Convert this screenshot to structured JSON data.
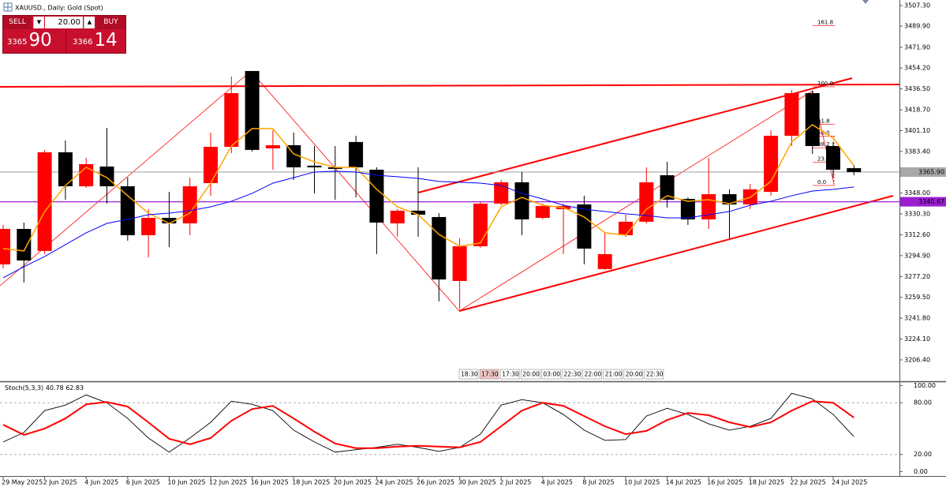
{
  "trade_panel": {
    "sell": "SELL",
    "buy": "BUY",
    "volume": "20.00",
    "bid_big": "3365",
    "bid_small": "90",
    "ask_big": "3366",
    "ask_small": "14"
  },
  "time_scale": [
    "18:30",
    "17:30",
    "17:30",
    "20:00",
    "03:00",
    "22:30",
    "22:00",
    "21:00",
    "20:00",
    "22:30"
  ],
  "chart_data": [
    {
      "type": "candlestick",
      "title": "XAUUSD., Daily: Gold (Spot)",
      "categories": [
        "29 May 2025",
        null,
        "2 Jun 2025",
        null,
        "4 Jun 2025",
        null,
        "6 Jun 2025",
        null,
        "10 Jun 2025",
        null,
        "12 Jun 2025",
        null,
        "16 Jun 2025",
        null,
        "18 Jun 2025",
        null,
        "20 Jun 2025",
        null,
        "24 Jun 2025",
        null,
        "26 Jun 2025",
        null,
        "30 Jun 2025",
        null,
        "2 Jul 2025",
        null,
        "4 Jul 2025",
        null,
        "8 Jul 2025",
        null,
        "10 Jul 2025",
        null,
        "14 Jul 2025",
        null,
        "16 Jul 2025",
        null,
        "18 Jul 2025",
        null,
        "22 Jul 2025",
        null,
        "24 Jul 2025",
        null
      ],
      "open": [
        3287.5,
        3317.6,
        3298.9,
        3382.7,
        3353.8,
        3370.6,
        3353.8,
        3312.3,
        3327.0,
        3322.3,
        3356.5,
        3387.3,
        3451.7,
        3386.0,
        3388.7,
        3371.3,
        3369.9,
        3391.4,
        3367.9,
        3322.3,
        3333.1,
        3327.7,
        3273.4,
        3302.9,
        3339.1,
        3357.2,
        3327.0,
        3334.4,
        3338.4,
        3283.5,
        3312.3,
        3323.7,
        3363.2,
        3343.1,
        3325.7,
        3347.1,
        3338.4,
        3349.1,
        3396.7,
        3432.9,
        3388.0,
        3369.2
      ],
      "high": [
        3321.0,
        3323.0,
        3384.7,
        3392.7,
        3378.0,
        3403.4,
        3361.2,
        3334.4,
        3349.1,
        3361.2,
        3399.4,
        3447.0,
        3451.7,
        3401.4,
        3399.4,
        3388.0,
        3388.0,
        3396.7,
        3369.9,
        3334.4,
        3369.9,
        3331.0,
        3309.6,
        3340.4,
        3359.2,
        3365.9,
        3339.1,
        3339.1,
        3345.8,
        3315.0,
        3329.7,
        3369.9,
        3374.6,
        3344.4,
        3378.0,
        3351.2,
        3355.8,
        3401.4,
        3435.6,
        3434.9,
        3391.4,
        3371.3
      ],
      "low": [
        3284.1,
        3272.1,
        3296.2,
        3342.4,
        3352.5,
        3339.1,
        3307.6,
        3293.5,
        3302.2,
        3312.3,
        3345.8,
        3382.0,
        3383.3,
        3367.9,
        3359.2,
        3347.8,
        3342.4,
        3344.4,
        3296.2,
        3310.9,
        3310.9,
        3256.0,
        3249.3,
        3301.6,
        3337.7,
        3312.3,
        3325.7,
        3296.2,
        3287.5,
        3282.8,
        3310.9,
        3322.3,
        3335.7,
        3321.0,
        3317.6,
        3309.6,
        3334.4,
        3345.8,
        3388.0,
        3381.3,
        3361.2,
        3363.2
      ],
      "close": [
        3317.6,
        3290.8,
        3382.7,
        3353.8,
        3372.6,
        3353.8,
        3312.3,
        3327.0,
        3322.3,
        3353.8,
        3387.3,
        3432.9,
        3384.7,
        3388.7,
        3369.9,
        3369.9,
        3368.6,
        3369.9,
        3323.0,
        3333.1,
        3329.7,
        3274.7,
        3302.9,
        3339.1,
        3357.2,
        3325.7,
        3337.1,
        3337.1,
        3300.9,
        3296.2,
        3323.7,
        3357.2,
        3342.4,
        3325.7,
        3347.1,
        3338.4,
        3351.2,
        3396.7,
        3432.9,
        3388.0,
        3367.9,
        3365.9
      ],
      "up_color": "#ff0000",
      "down_color": "#000000",
      "overlays": [
        {
          "color": "#ffa500",
          "values": [
            3300.9,
            3298.9,
            3332.4,
            3354.5,
            3369.9,
            3361.2,
            3345.8,
            3331.0,
            3322.3,
            3331.0,
            3356.5,
            3388.0,
            3402.8,
            3402.8,
            3381.3,
            3374.6,
            3369.9,
            3369.9,
            3351.2,
            3336.4,
            3329.7,
            3313.0,
            3302.9,
            3305.6,
            3336.4,
            3344.4,
            3337.7,
            3335.7,
            3327.7,
            3314.3,
            3312.3,
            3334.4,
            3345.8,
            3341.1,
            3342.4,
            3339.1,
            3344.4,
            3357.9,
            3391.4,
            3406.1,
            3394.7,
            3371.3
          ]
        },
        {
          "color": "#0000ff",
          "values": [
            3276.1,
            3285.5,
            3294.2,
            3304.2,
            3314.3,
            3322.3,
            3325.7,
            3329.7,
            3331.0,
            3333.1,
            3336.4,
            3341.1,
            3347.8,
            3356.5,
            3361.2,
            3365.9,
            3366.6,
            3365.9,
            3363.2,
            3361.9,
            3360.5,
            3357.9,
            3357.2,
            3356.5,
            3354.5,
            3347.8,
            3343.1,
            3337.7,
            3334.4,
            3332.4,
            3330.4,
            3329.0,
            3327.0,
            3327.0,
            3329.7,
            3332.4,
            3337.7,
            3341.1,
            3345.8,
            3349.8,
            3351.2,
            3353.2
          ]
        }
      ],
      "ylim": [
        3188.9,
        3512.0
      ],
      "yticks": [
        {
          "value": 3507.3,
          "label": "3507.30"
        },
        {
          "value": 3489.9,
          "label": "3489.90"
        },
        {
          "value": 3471.9,
          "label": "3471.90"
        },
        {
          "value": 3454.2,
          "label": "3454.20"
        },
        {
          "value": 3436.5,
          "label": "3436.50"
        },
        {
          "value": 3418.7,
          "label": "3418.70"
        },
        {
          "value": 3401.1,
          "label": "3401.10"
        },
        {
          "value": 3383.4,
          "label": "3383.40"
        },
        {
          "value": 3348,
          "label": "3348.00"
        },
        {
          "value": 3330.3,
          "label": "3330.30"
        },
        {
          "value": 3312.6,
          "label": "3312.60"
        },
        {
          "value": 3294.9,
          "label": "3294.90"
        },
        {
          "value": 3277.2,
          "label": "3277.20"
        },
        {
          "value": 3259.5,
          "label": "3259.50"
        },
        {
          "value": 3241.8,
          "label": "3241.80"
        },
        {
          "value": 3224.1,
          "label": "3224.10"
        },
        {
          "value": 3206.4,
          "label": "3206.40"
        }
      ],
      "price_lines": [
        {
          "value": 3365.9,
          "label": "3365.90",
          "color": "#a8a8a8"
        },
        {
          "value": 3340.67,
          "label": "3340.67",
          "color": "#9b1fd1"
        }
      ],
      "fibo": {
        "from": 3354.5,
        "to": 3438.3,
        "color": "#ff0000",
        "levels": [
          161.8,
          {
            "value": 100,
            "label": "100.0"
          },
          61.8,
          {
            "value": 50,
            "label": "50.0"
          },
          38.2,
          23.6,
          {
            "value": 0,
            "label": "0.0"
          }
        ]
      }
    },
    {
      "type": "line",
      "title": "Stoch(5,3,3)",
      "series": [
        {
          "color": "#000000",
          "values": [
            34.5,
            45.5,
            70.9,
            77.3,
            89.1,
            80.0,
            61.8,
            39.1,
            22.7,
            39.1,
            57.3,
            81.8,
            78.2,
            70.9,
            48.2,
            34.5,
            22.7,
            25.5,
            28.2,
            31.8,
            28.2,
            23.6,
            28.2,
            43.6,
            77.3,
            83.6,
            80.0,
            66.4,
            48.2,
            36.4,
            37.3,
            64.5,
            73.6,
            66.4,
            55.5,
            48.2,
            52.7,
            61.8,
            90.9,
            84.5,
            66.4,
            40.78
          ]
        },
        {
          "color": "#ff0000",
          "values": [
            54.5,
            42.7,
            50.0,
            61.8,
            78.2,
            80.9,
            75.5,
            57.3,
            38.2,
            31.8,
            39.1,
            59.1,
            72.7,
            76.4,
            61.8,
            46.4,
            32.7,
            27.3,
            27.3,
            29.1,
            30.0,
            29.1,
            28.2,
            34.5,
            52.7,
            70.9,
            80.0,
            76.4,
            64.5,
            52.7,
            43.6,
            47.3,
            60.0,
            68.2,
            65.5,
            57.3,
            51.8,
            57.3,
            70.9,
            81.8,
            80.0,
            62.83
          ]
        }
      ],
      "ylim": [
        -5,
        104
      ],
      "yticks": [
        {
          "value": 100,
          "label": "100.00"
        },
        {
          "value": 80,
          "label": "80.00"
        },
        {
          "value": 20,
          "label": "20.00"
        },
        {
          "value": 0,
          "label": "0.00"
        }
      ],
      "levels": [
        20,
        80
      ]
    }
  ]
}
